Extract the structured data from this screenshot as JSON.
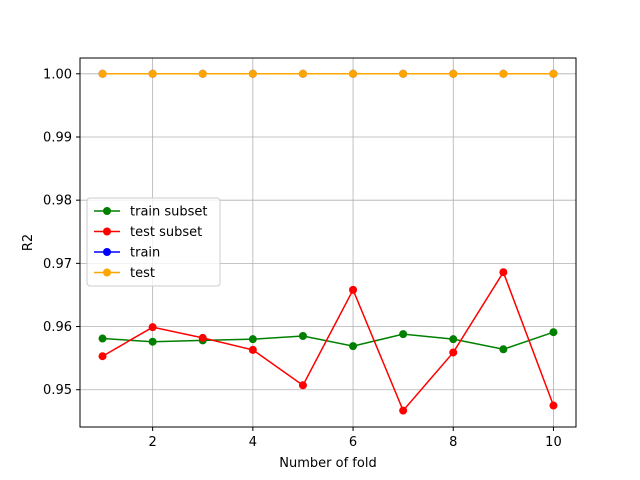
{
  "chart_data": {
    "type": "line",
    "title": "",
    "xlabel": "Number of fold",
    "ylabel": "R2",
    "x": [
      1,
      2,
      3,
      4,
      5,
      6,
      7,
      8,
      9,
      10
    ],
    "xlim": [
      0.55,
      10.45
    ],
    "ylim": [
      0.9441,
      1.0025
    ],
    "xticks": [
      2,
      4,
      6,
      8,
      10
    ],
    "yticks": [
      0.95,
      0.96,
      0.97,
      0.98,
      0.99,
      1.0
    ],
    "xtick_labels": [
      "2",
      "4",
      "6",
      "8",
      "10"
    ],
    "ytick_labels": [
      "0.95",
      "0.96",
      "0.97",
      "0.98",
      "0.99",
      "1.00"
    ],
    "grid": true,
    "legend_position": "center-left",
    "series": [
      {
        "name": "train subset",
        "color": "#008000",
        "marker": "circle",
        "values": [
          0.9581,
          0.9576,
          0.9578,
          0.958,
          0.9585,
          0.9569,
          0.9588,
          0.958,
          0.9564,
          0.9591
        ]
      },
      {
        "name": "test subset",
        "color": "#ff0000",
        "marker": "circle",
        "values": [
          0.9553,
          0.9599,
          0.9582,
          0.9563,
          0.9507,
          0.9658,
          0.9467,
          0.9559,
          0.9686,
          0.9475
        ]
      },
      {
        "name": "train",
        "color": "#0000ff",
        "marker": "circle",
        "values": [
          1.0,
          1.0,
          1.0,
          1.0,
          1.0,
          1.0,
          1.0,
          1.0,
          1.0,
          1.0
        ]
      },
      {
        "name": "test",
        "color": "#ffa500",
        "marker": "circle",
        "values": [
          1.0,
          1.0,
          1.0,
          1.0,
          1.0,
          1.0,
          1.0,
          1.0,
          1.0,
          1.0
        ]
      }
    ]
  }
}
